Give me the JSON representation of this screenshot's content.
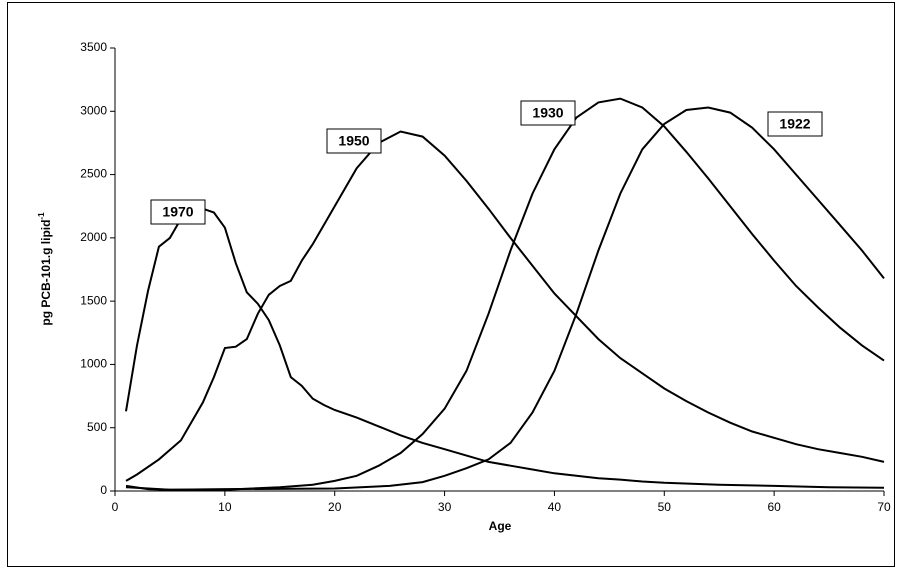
{
  "chart_data": {
    "type": "line",
    "xlabel": "Age",
    "ylabel": {
      "text": "pg PCB-101.g lipid",
      "superscript": "-1"
    },
    "xlim": [
      0,
      70
    ],
    "xticks": [
      0,
      10,
      20,
      30,
      40,
      50,
      60,
      70
    ],
    "ylim": [
      0,
      3500
    ],
    "yticks": [
      0,
      500,
      1000,
      1500,
      2000,
      2500,
      3000,
      3500
    ],
    "grid": false,
    "series": [
      {
        "name": "1970",
        "color": "#000000",
        "x": [
          1,
          2,
          3,
          4,
          5,
          6,
          7,
          8,
          9,
          10,
          11,
          12,
          13,
          14,
          15,
          16,
          17,
          18,
          19,
          20,
          22,
          24,
          26,
          28,
          30,
          32,
          34,
          36,
          38,
          40,
          42,
          44,
          46,
          48,
          50,
          55,
          60,
          65,
          70
        ],
        "values": [
          630,
          1150,
          1580,
          1930,
          2000,
          2150,
          2230,
          2230,
          2200,
          2080,
          1800,
          1570,
          1480,
          1350,
          1150,
          900,
          830,
          730,
          680,
          640,
          580,
          510,
          440,
          380,
          330,
          280,
          230,
          200,
          170,
          140,
          120,
          100,
          90,
          75,
          65,
          50,
          40,
          30,
          25
        ]
      },
      {
        "name": "1950",
        "color": "#000000",
        "x": [
          1,
          2,
          4,
          6,
          8,
          9,
          10,
          11,
          12,
          13,
          14,
          15,
          16,
          17,
          18,
          20,
          22,
          24,
          26,
          28,
          30,
          32,
          34,
          36,
          38,
          40,
          42,
          44,
          46,
          48,
          50,
          52,
          54,
          56,
          58,
          60,
          62,
          64,
          66,
          68,
          70
        ],
        "values": [
          80,
          130,
          250,
          400,
          700,
          900,
          1130,
          1140,
          1200,
          1400,
          1550,
          1620,
          1660,
          1820,
          1950,
          2250,
          2550,
          2750,
          2840,
          2800,
          2650,
          2450,
          2230,
          2000,
          1780,
          1560,
          1380,
          1200,
          1050,
          930,
          810,
          710,
          620,
          540,
          470,
          420,
          370,
          330,
          300,
          270,
          230
        ]
      },
      {
        "name": "1930",
        "color": "#000000",
        "x": [
          1,
          3,
          5,
          10,
          15,
          18,
          20,
          22,
          24,
          26,
          28,
          30,
          32,
          34,
          36,
          38,
          40,
          42,
          44,
          46,
          48,
          50,
          52,
          54,
          56,
          58,
          60,
          62,
          64,
          66,
          68,
          70
        ],
        "values": [
          40,
          15,
          10,
          10,
          30,
          50,
          80,
          120,
          200,
          300,
          450,
          650,
          950,
          1400,
          1900,
          2350,
          2700,
          2950,
          3070,
          3100,
          3030,
          2880,
          2680,
          2470,
          2250,
          2030,
          1820,
          1620,
          1450,
          1290,
          1150,
          1030
        ]
      },
      {
        "name": "1922",
        "color": "#000000",
        "x": [
          1,
          5,
          10,
          20,
          25,
          28,
          30,
          32,
          34,
          36,
          38,
          40,
          42,
          44,
          46,
          48,
          50,
          52,
          54,
          56,
          58,
          60,
          62,
          64,
          66,
          68,
          70
        ],
        "values": [
          30,
          10,
          15,
          20,
          40,
          70,
          120,
          180,
          250,
          380,
          620,
          950,
          1400,
          1900,
          2350,
          2700,
          2900,
          3010,
          3030,
          2990,
          2870,
          2700,
          2500,
          2300,
          2100,
          1900,
          1680
        ]
      }
    ]
  }
}
